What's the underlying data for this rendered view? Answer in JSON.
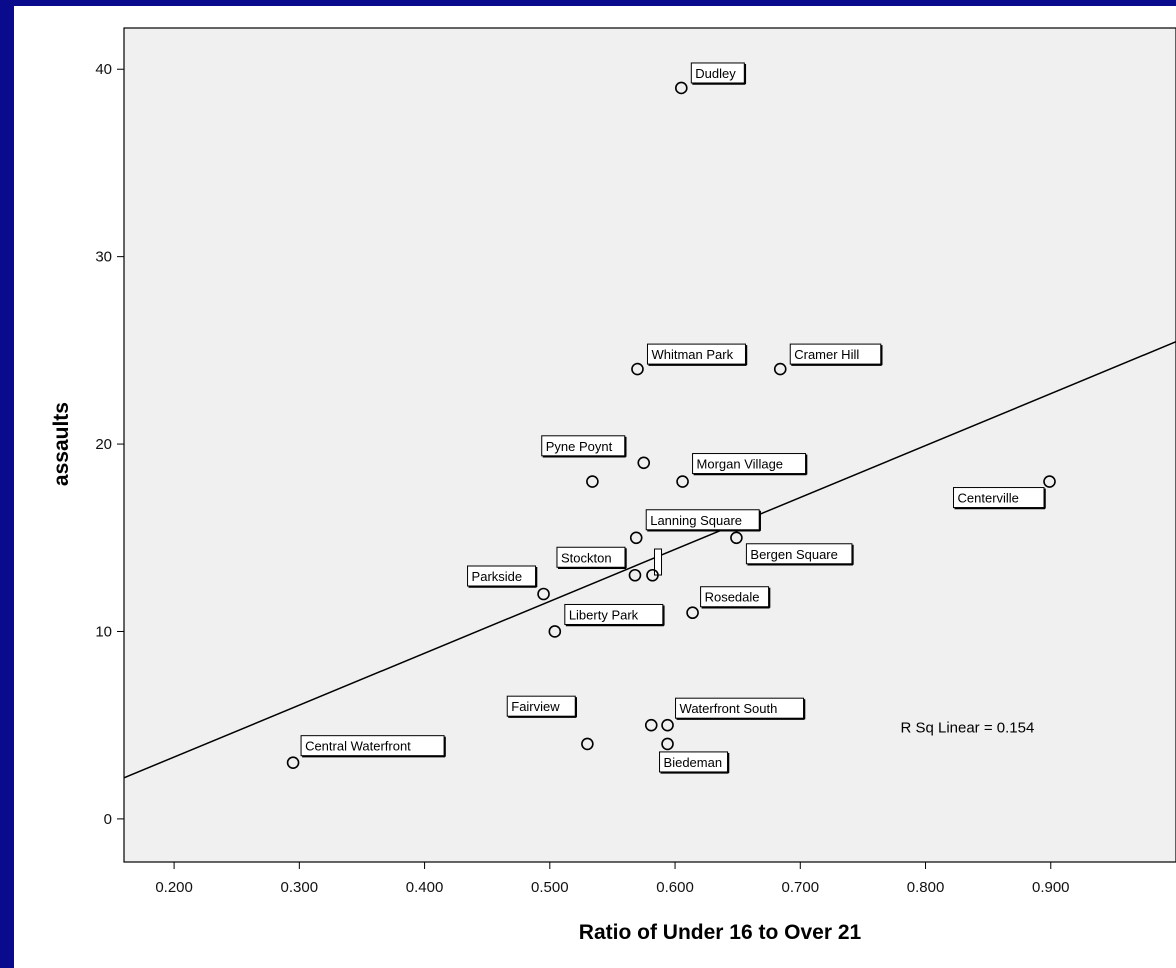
{
  "chart_data": {
    "type": "scatter",
    "xlabel": "Ratio of Under 16 to Over 21",
    "ylabel": "assaults",
    "xlim": [
      0.16,
      1.0
    ],
    "ylim": [
      -2.3,
      42.2
    ],
    "x_ticks": [
      0.2,
      0.3,
      0.4,
      0.5,
      0.6,
      0.7,
      0.8,
      0.9
    ],
    "x_tick_labels": [
      "0.200",
      "0.300",
      "0.400",
      "0.500",
      "0.600",
      "0.700",
      "0.800",
      "0.900"
    ],
    "y_ticks": [
      0,
      10,
      20,
      30,
      40
    ],
    "y_tick_labels": [
      "0",
      "10",
      "20",
      "30",
      "40"
    ],
    "grid": false,
    "fit_line": {
      "type": "linear",
      "intercept": -2.24,
      "slope": 27.7,
      "label": "R Sq Linear = 0.154"
    },
    "points": [
      {
        "label": "Dudley",
        "x": 0.605,
        "y": 39
      },
      {
        "label": "Whitman Park",
        "x": 0.57,
        "y": 24
      },
      {
        "label": "Cramer Hill",
        "x": 0.684,
        "y": 24
      },
      {
        "label": "Pyne Poynt",
        "x": 0.575,
        "y": 19
      },
      {
        "label": "",
        "x": 0.534,
        "y": 18
      },
      {
        "label": "Morgan Village",
        "x": 0.606,
        "y": 18
      },
      {
        "label": "Centerville",
        "x": 0.899,
        "y": 18
      },
      {
        "label": "Lanning Square",
        "x": 0.569,
        "y": 15
      },
      {
        "label": "Bergen Square",
        "x": 0.649,
        "y": 15
      },
      {
        "label": "Stockton",
        "x": 0.568,
        "y": 13
      },
      {
        "label": "",
        "x": 0.582,
        "y": 13
      },
      {
        "label": "Parkside",
        "x": 0.495,
        "y": 12
      },
      {
        "label": "Rosedale",
        "x": 0.614,
        "y": 11
      },
      {
        "label": "Liberty Park",
        "x": 0.504,
        "y": 10
      },
      {
        "label": "Fairview",
        "x": 0.581,
        "y": 5
      },
      {
        "label": "Waterfront South",
        "x": 0.594,
        "y": 5
      },
      {
        "label": "",
        "x": 0.53,
        "y": 4
      },
      {
        "label": "Biedeman",
        "x": 0.594,
        "y": 4
      },
      {
        "label": "Central Waterfront",
        "x": 0.295,
        "y": 3
      }
    ]
  }
}
